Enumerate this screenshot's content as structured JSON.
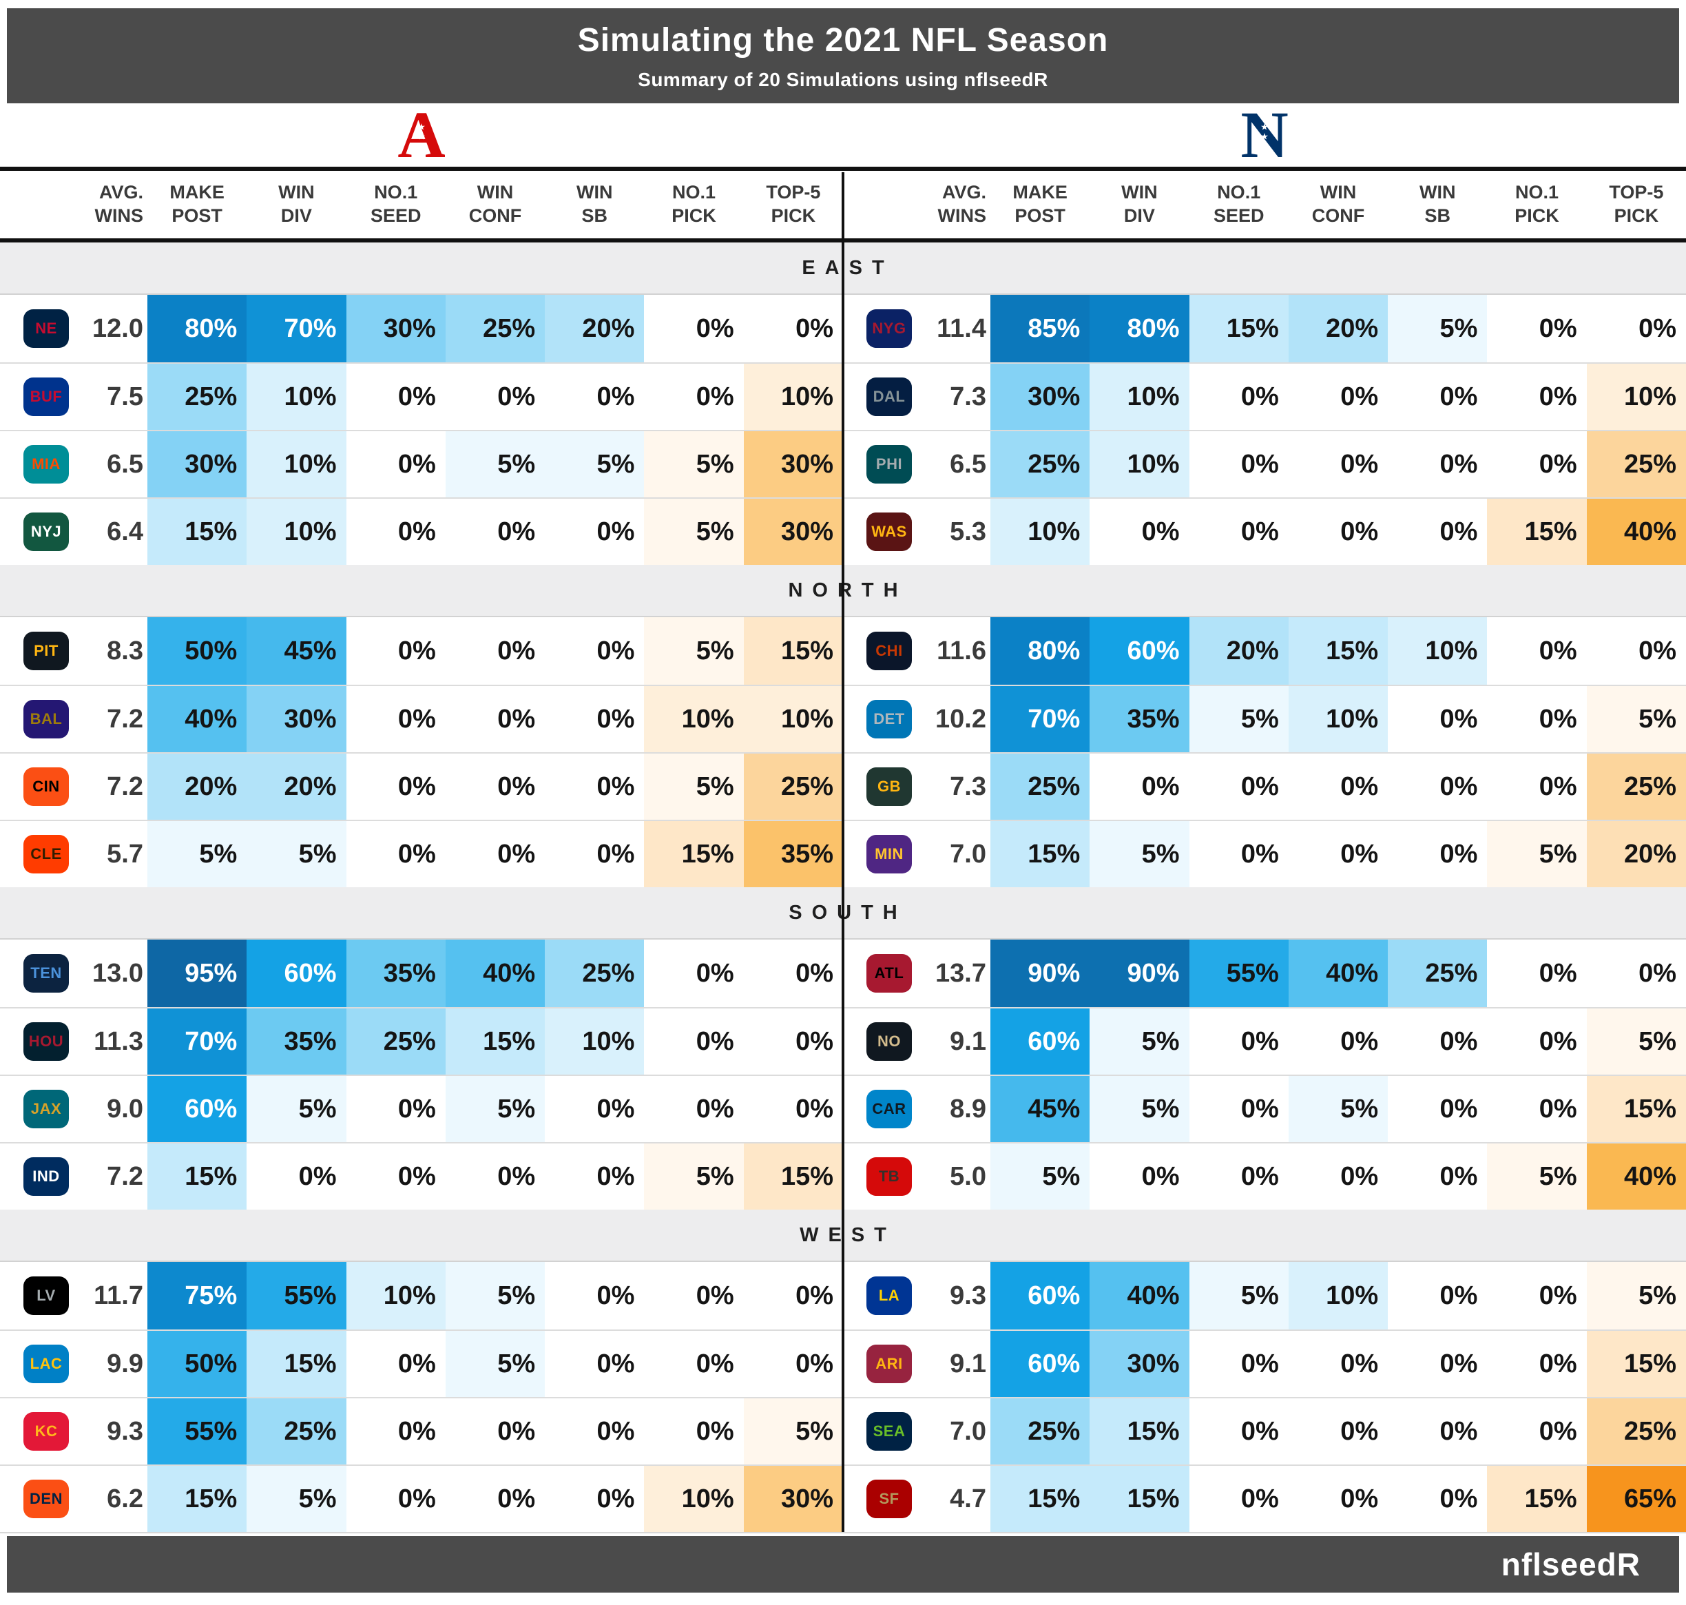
{
  "header": {
    "title": "Simulating the 2021 NFL Season",
    "subtitle": "Summary of 20 Simulations using nflseedR",
    "bar_color": "#4b4b4b"
  },
  "conferences": [
    {
      "name": "AFC",
      "letter": "A",
      "color": "#d50a0a"
    },
    {
      "name": "NFC",
      "letter": "N",
      "color": "#013369"
    }
  ],
  "columns": [
    {
      "key": "avg-wins",
      "l1": "AVG.",
      "l2": "WINS",
      "type": "wins"
    },
    {
      "key": "make-post",
      "l1": "MAKE",
      "l2": "POST",
      "type": "blue"
    },
    {
      "key": "win-div",
      "l1": "WIN",
      "l2": "DIV",
      "type": "blue"
    },
    {
      "key": "no1-seed",
      "l1": "NO.1",
      "l2": "SEED",
      "type": "blue"
    },
    {
      "key": "win-conf",
      "l1": "WIN",
      "l2": "CONF",
      "type": "blue"
    },
    {
      "key": "win-sb",
      "l1": "WIN",
      "l2": "SB",
      "type": "blue"
    },
    {
      "key": "no1-pick",
      "l1": "NO.1",
      "l2": "PICK",
      "type": "orange"
    },
    {
      "key": "top5-pick",
      "l1": "TOP-5",
      "l2": "PICK",
      "type": "orange"
    }
  ],
  "chart_data": {
    "type": "heatmap",
    "title": "Simulating the 2021 NFL Season",
    "subtitle": "Summary of 20 Simulations using nflseedR",
    "value_unit": "percent",
    "stat_columns": [
      "MAKE POST",
      "WIN DIV",
      "NO.1 SEED",
      "WIN CONF",
      "WIN SB",
      "NO.1 PICK",
      "TOP-5 PICK"
    ],
    "divisions": [
      {
        "name": "EAST",
        "afc": [
          {
            "team": "New England Patriots",
            "abbr": "NE",
            "wins": "12.0",
            "pct": [
              80,
              70,
              30,
              25,
              20,
              0,
              0
            ],
            "colors": [
              "#002244",
              "#c60c30"
            ]
          },
          {
            "team": "Buffalo Bills",
            "abbr": "BUF",
            "wins": "7.5",
            "pct": [
              25,
              10,
              0,
              0,
              0,
              0,
              10
            ],
            "colors": [
              "#00338d",
              "#c60c30"
            ]
          },
          {
            "team": "Miami Dolphins",
            "abbr": "MIA",
            "wins": "6.5",
            "pct": [
              30,
              10,
              0,
              5,
              5,
              5,
              30
            ],
            "colors": [
              "#008e97",
              "#fc4c02"
            ]
          },
          {
            "team": "New York Jets",
            "abbr": "NYJ",
            "wins": "6.4",
            "pct": [
              15,
              10,
              0,
              0,
              0,
              5,
              30
            ],
            "colors": [
              "#125740",
              "#ffffff"
            ]
          }
        ],
        "nfc": [
          {
            "team": "New York Giants",
            "abbr": "NYG",
            "wins": "11.4",
            "pct": [
              85,
              80,
              15,
              20,
              5,
              0,
              0
            ],
            "colors": [
              "#0b2265",
              "#a71930"
            ]
          },
          {
            "team": "Dallas Cowboys",
            "abbr": "DAL",
            "wins": "7.3",
            "pct": [
              30,
              10,
              0,
              0,
              0,
              0,
              10
            ],
            "colors": [
              "#041e42",
              "#869397"
            ]
          },
          {
            "team": "Philadelphia Eagles",
            "abbr": "PHI",
            "wins": "6.5",
            "pct": [
              25,
              10,
              0,
              0,
              0,
              0,
              25
            ],
            "colors": [
              "#004c54",
              "#a5acaf"
            ]
          },
          {
            "team": "Washington",
            "abbr": "WAS",
            "wins": "5.3",
            "pct": [
              10,
              0,
              0,
              0,
              0,
              15,
              40
            ],
            "colors": [
              "#5a1414",
              "#ffb612"
            ]
          }
        ]
      },
      {
        "name": "NORTH",
        "afc": [
          {
            "team": "Pittsburgh Steelers",
            "abbr": "PIT",
            "wins": "8.3",
            "pct": [
              50,
              45,
              0,
              0,
              0,
              5,
              15
            ],
            "colors": [
              "#101820",
              "#ffb612"
            ]
          },
          {
            "team": "Baltimore Ravens",
            "abbr": "BAL",
            "wins": "7.2",
            "pct": [
              40,
              30,
              0,
              0,
              0,
              10,
              10
            ],
            "colors": [
              "#241773",
              "#9e7c0c"
            ]
          },
          {
            "team": "Cincinnati Bengals",
            "abbr": "CIN",
            "wins": "7.2",
            "pct": [
              20,
              20,
              0,
              0,
              0,
              5,
              25
            ],
            "colors": [
              "#fb4f14",
              "#000000"
            ]
          },
          {
            "team": "Cleveland Browns",
            "abbr": "CLE",
            "wins": "5.7",
            "pct": [
              5,
              5,
              0,
              0,
              0,
              15,
              35
            ],
            "colors": [
              "#ff3c00",
              "#311d00"
            ]
          }
        ],
        "nfc": [
          {
            "team": "Chicago Bears",
            "abbr": "CHI",
            "wins": "11.6",
            "pct": [
              80,
              60,
              20,
              15,
              10,
              0,
              0
            ],
            "colors": [
              "#0b162a",
              "#c83803"
            ]
          },
          {
            "team": "Detroit Lions",
            "abbr": "DET",
            "wins": "10.2",
            "pct": [
              70,
              35,
              5,
              10,
              0,
              0,
              5
            ],
            "colors": [
              "#0076b6",
              "#b0b7bc"
            ]
          },
          {
            "team": "Green Bay Packers",
            "abbr": "GB",
            "wins": "7.3",
            "pct": [
              25,
              0,
              0,
              0,
              0,
              0,
              25
            ],
            "colors": [
              "#203731",
              "#ffb612"
            ]
          },
          {
            "team": "Minnesota Vikings",
            "abbr": "MIN",
            "wins": "7.0",
            "pct": [
              15,
              5,
              0,
              0,
              0,
              5,
              20
            ],
            "colors": [
              "#4f2683",
              "#ffc62f"
            ]
          }
        ]
      },
      {
        "name": "SOUTH",
        "afc": [
          {
            "team": "Tennessee Titans",
            "abbr": "TEN",
            "wins": "13.0",
            "pct": [
              95,
              60,
              35,
              40,
              25,
              0,
              0
            ],
            "colors": [
              "#0c2340",
              "#4b92db"
            ]
          },
          {
            "team": "Houston Texans",
            "abbr": "HOU",
            "wins": "11.3",
            "pct": [
              70,
              35,
              25,
              15,
              10,
              0,
              0
            ],
            "colors": [
              "#03202f",
              "#a71930"
            ]
          },
          {
            "team": "Jacksonville Jaguars",
            "abbr": "JAX",
            "wins": "9.0",
            "pct": [
              60,
              5,
              0,
              5,
              0,
              0,
              0
            ],
            "colors": [
              "#006778",
              "#d7a22a"
            ]
          },
          {
            "team": "Indianapolis Colts",
            "abbr": "IND",
            "wins": "7.2",
            "pct": [
              15,
              0,
              0,
              0,
              0,
              5,
              15
            ],
            "colors": [
              "#002c5f",
              "#ffffff"
            ]
          }
        ],
        "nfc": [
          {
            "team": "Atlanta Falcons",
            "abbr": "ATL",
            "wins": "13.7",
            "pct": [
              90,
              90,
              55,
              40,
              25,
              0,
              0
            ],
            "colors": [
              "#a71930",
              "#000000"
            ]
          },
          {
            "team": "New Orleans Saints",
            "abbr": "NO",
            "wins": "9.1",
            "pct": [
              60,
              5,
              0,
              0,
              0,
              0,
              5
            ],
            "colors": [
              "#101820",
              "#d3bc8d"
            ]
          },
          {
            "team": "Carolina Panthers",
            "abbr": "CAR",
            "wins": "8.9",
            "pct": [
              45,
              5,
              0,
              5,
              0,
              0,
              15
            ],
            "colors": [
              "#0085ca",
              "#101820"
            ]
          },
          {
            "team": "Tampa Bay Buccaneers",
            "abbr": "TB",
            "wins": "5.0",
            "pct": [
              5,
              0,
              0,
              0,
              0,
              5,
              40
            ],
            "colors": [
              "#d50a0a",
              "#34302b"
            ]
          }
        ]
      },
      {
        "name": "WEST",
        "afc": [
          {
            "team": "Las Vegas Raiders",
            "abbr": "LV",
            "wins": "11.7",
            "pct": [
              75,
              55,
              10,
              5,
              0,
              0,
              0
            ],
            "colors": [
              "#000000",
              "#a5acaf"
            ]
          },
          {
            "team": "Los Angeles Chargers",
            "abbr": "LAC",
            "wins": "9.9",
            "pct": [
              50,
              15,
              0,
              5,
              0,
              0,
              0
            ],
            "colors": [
              "#0080c6",
              "#ffc20e"
            ]
          },
          {
            "team": "Kansas City Chiefs",
            "abbr": "KC",
            "wins": "9.3",
            "pct": [
              55,
              25,
              0,
              0,
              0,
              0,
              5
            ],
            "colors": [
              "#e31837",
              "#ffb81c"
            ]
          },
          {
            "team": "Denver Broncos",
            "abbr": "DEN",
            "wins": "6.2",
            "pct": [
              15,
              5,
              0,
              0,
              0,
              10,
              30
            ],
            "colors": [
              "#fb4f14",
              "#002244"
            ]
          }
        ],
        "nfc": [
          {
            "team": "Los Angeles Rams",
            "abbr": "LA",
            "wins": "9.3",
            "pct": [
              60,
              40,
              5,
              10,
              0,
              0,
              5
            ],
            "colors": [
              "#003594",
              "#ffd100"
            ]
          },
          {
            "team": "Arizona Cardinals",
            "abbr": "ARI",
            "wins": "9.1",
            "pct": [
              60,
              30,
              0,
              0,
              0,
              0,
              15
            ],
            "colors": [
              "#97233f",
              "#ffb612"
            ]
          },
          {
            "team": "Seattle Seahawks",
            "abbr": "SEA",
            "wins": "7.0",
            "pct": [
              25,
              15,
              0,
              0,
              0,
              0,
              25
            ],
            "colors": [
              "#002244",
              "#69be28"
            ]
          },
          {
            "team": "San Francisco 49ers",
            "abbr": "SF",
            "wins": "4.7",
            "pct": [
              15,
              15,
              0,
              0,
              0,
              15,
              65
            ],
            "colors": [
              "#aa0000",
              "#b3995d"
            ]
          }
        ]
      }
    ],
    "scales": {
      "blue_stops": [
        [
          0,
          "#ffffff"
        ],
        [
          20,
          "#b2e3f9"
        ],
        [
          40,
          "#55c1f0"
        ],
        [
          60,
          "#14a2e5"
        ],
        [
          80,
          "#0b81c6"
        ],
        [
          95,
          "#0e67a5"
        ]
      ],
      "orange_stops": [
        [
          0,
          "#ffffff"
        ],
        [
          20,
          "#fddfb5"
        ],
        [
          40,
          "#fab851"
        ],
        [
          65,
          "#f7941d"
        ]
      ],
      "white_text_min": 60
    }
  },
  "footer": {
    "brand": "nflseedR",
    "bar_color": "#4b4b4b"
  }
}
